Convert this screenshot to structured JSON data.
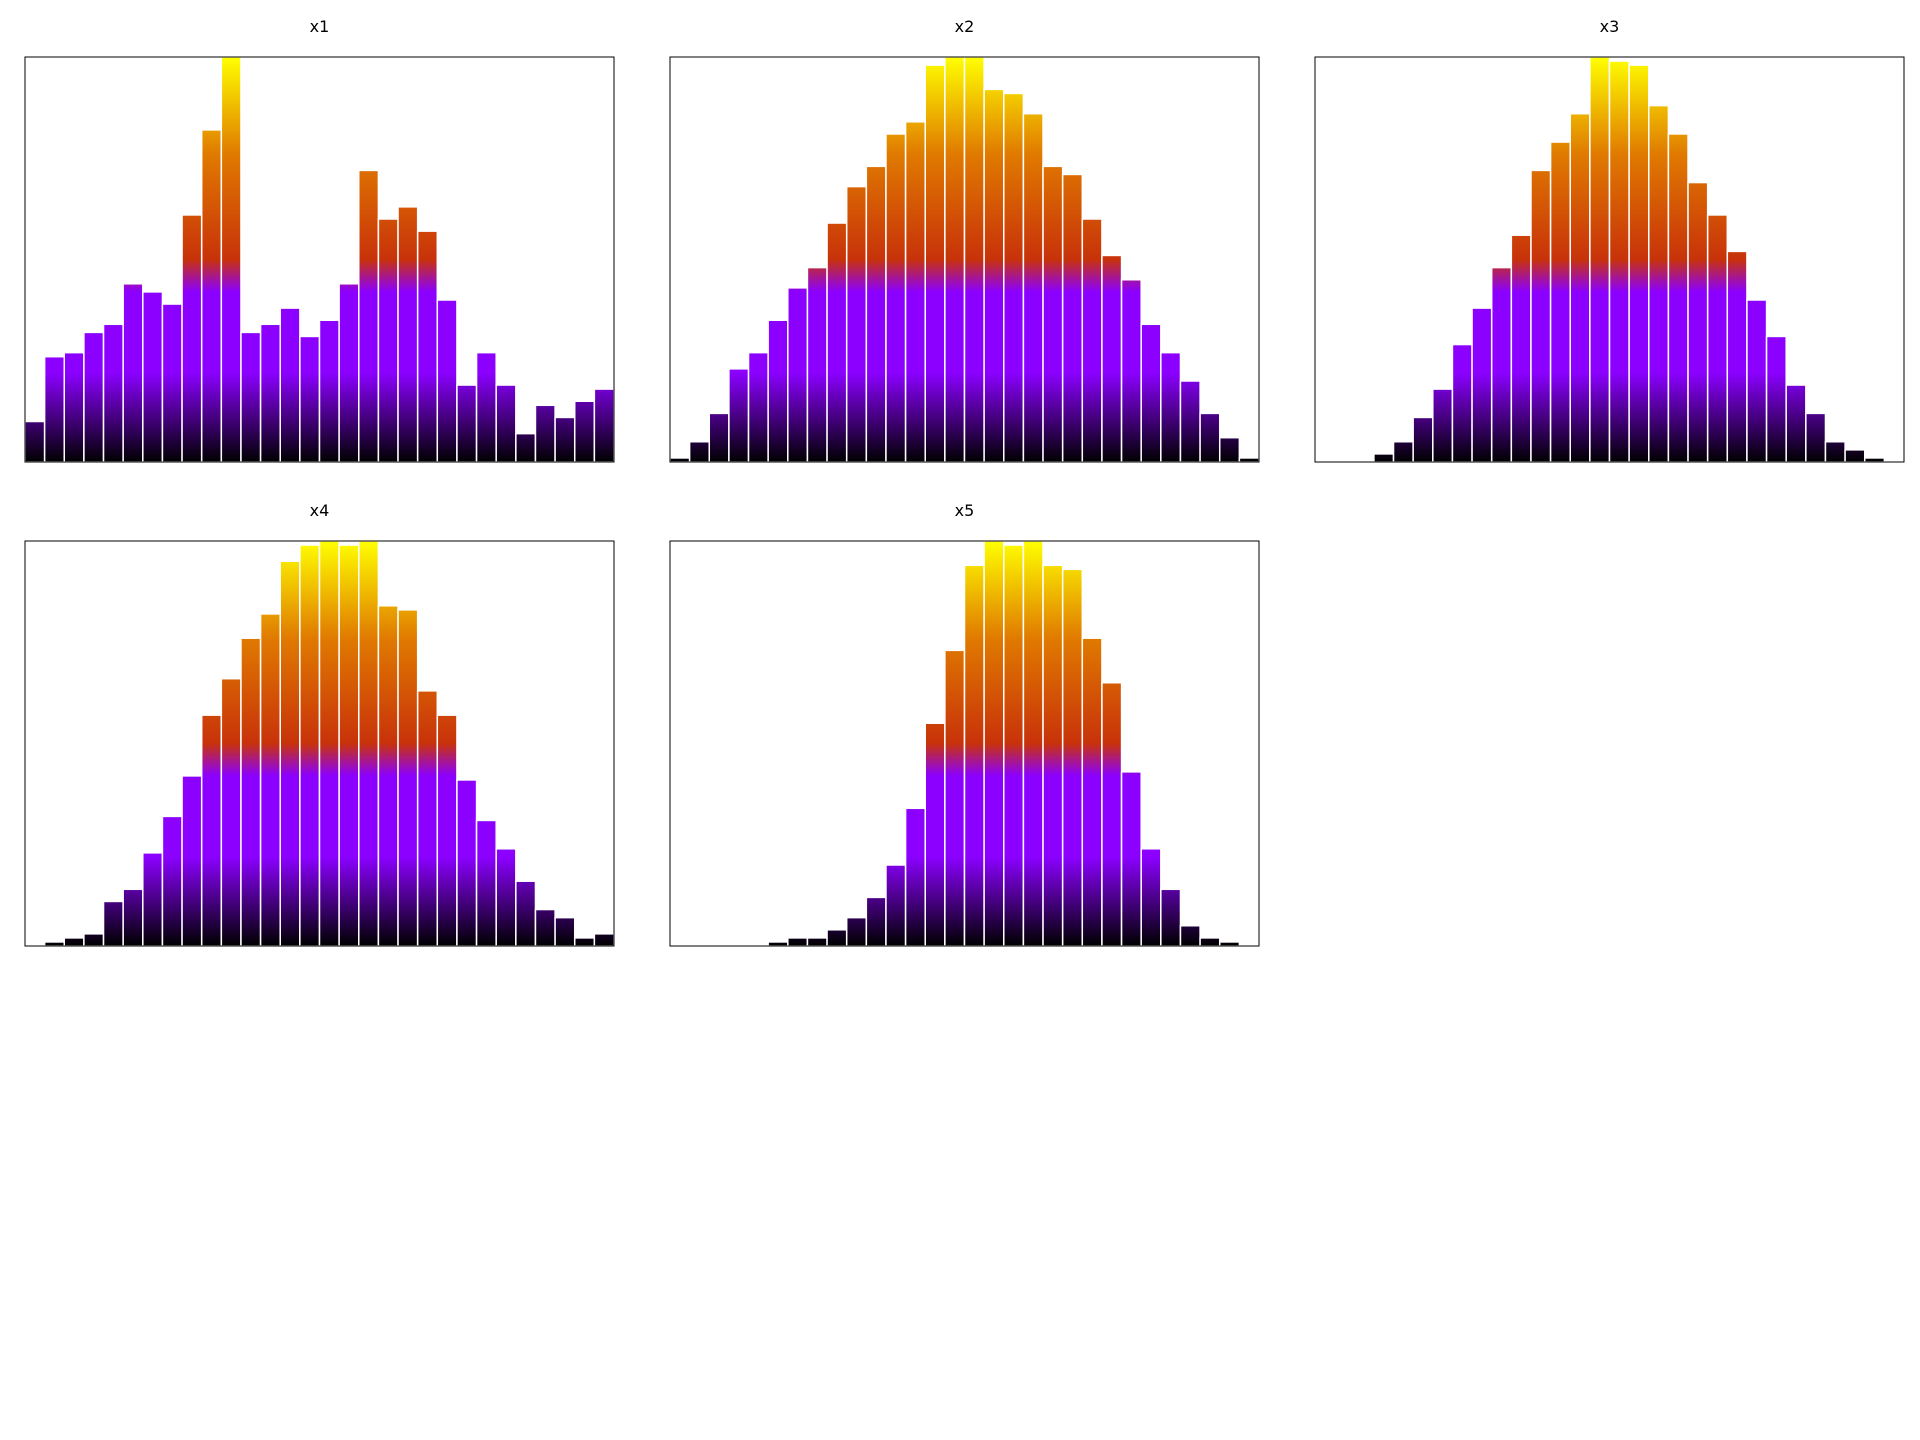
{
  "gradient": {
    "stops": [
      "#000000",
      "#8b00ff",
      "#8b00ff",
      "#c8320a",
      "#e07a00",
      "#ffff00"
    ],
    "bar_edge": "#ffffff"
  },
  "chart_data": [
    {
      "type": "bar",
      "title": "x1",
      "axes": "hidden",
      "grid": false,
      "values": [
        0.1,
        0.26,
        0.27,
        0.32,
        0.34,
        0.44,
        0.42,
        0.39,
        0.61,
        0.82,
        1.0,
        0.32,
        0.34,
        0.38,
        0.31,
        0.35,
        0.44,
        0.72,
        0.6,
        0.63,
        0.57,
        0.4,
        0.19,
        0.27,
        0.19,
        0.07,
        0.14,
        0.11,
        0.15,
        0.18
      ],
      "ylim": [
        0,
        1
      ]
    },
    {
      "type": "bar",
      "title": "x2",
      "axes": "hidden",
      "grid": false,
      "values": [
        0.01,
        0.05,
        0.12,
        0.23,
        0.27,
        0.35,
        0.43,
        0.48,
        0.59,
        0.68,
        0.73,
        0.81,
        0.84,
        0.98,
        1.0,
        1.0,
        0.92,
        0.91,
        0.86,
        0.73,
        0.71,
        0.6,
        0.51,
        0.45,
        0.34,
        0.27,
        0.2,
        0.12,
        0.06,
        0.01
      ],
      "ylim": [
        0,
        1
      ]
    },
    {
      "type": "bar",
      "title": "x3",
      "axes": "hidden",
      "grid": false,
      "values": [
        0.0,
        0.0,
        0.0,
        0.02,
        0.05,
        0.11,
        0.18,
        0.29,
        0.38,
        0.48,
        0.56,
        0.72,
        0.79,
        0.86,
        1.0,
        0.99,
        0.98,
        0.88,
        0.81,
        0.69,
        0.61,
        0.52,
        0.4,
        0.31,
        0.19,
        0.12,
        0.05,
        0.03,
        0.01,
        0.0
      ],
      "ylim": [
        0,
        1
      ]
    },
    {
      "type": "bar",
      "title": "x4",
      "axes": "hidden",
      "grid": false,
      "values": [
        0.0,
        0.01,
        0.02,
        0.03,
        0.11,
        0.14,
        0.23,
        0.32,
        0.42,
        0.57,
        0.66,
        0.76,
        0.82,
        0.95,
        0.99,
        1.0,
        0.99,
        1.0,
        0.84,
        0.83,
        0.63,
        0.57,
        0.41,
        0.31,
        0.24,
        0.16,
        0.09,
        0.07,
        0.02,
        0.03
      ],
      "ylim": [
        0,
        1
      ]
    },
    {
      "type": "bar",
      "title": "x5",
      "axes": "hidden",
      "grid": false,
      "values": [
        0.0,
        0.0,
        0.0,
        0.0,
        0.0,
        0.01,
        0.02,
        0.02,
        0.04,
        0.07,
        0.12,
        0.2,
        0.34,
        0.55,
        0.73,
        0.94,
        1.0,
        0.99,
        1.0,
        0.94,
        0.93,
        0.76,
        0.65,
        0.43,
        0.24,
        0.14,
        0.05,
        0.02,
        0.01,
        0.0
      ],
      "ylim": [
        0,
        1
      ]
    }
  ]
}
